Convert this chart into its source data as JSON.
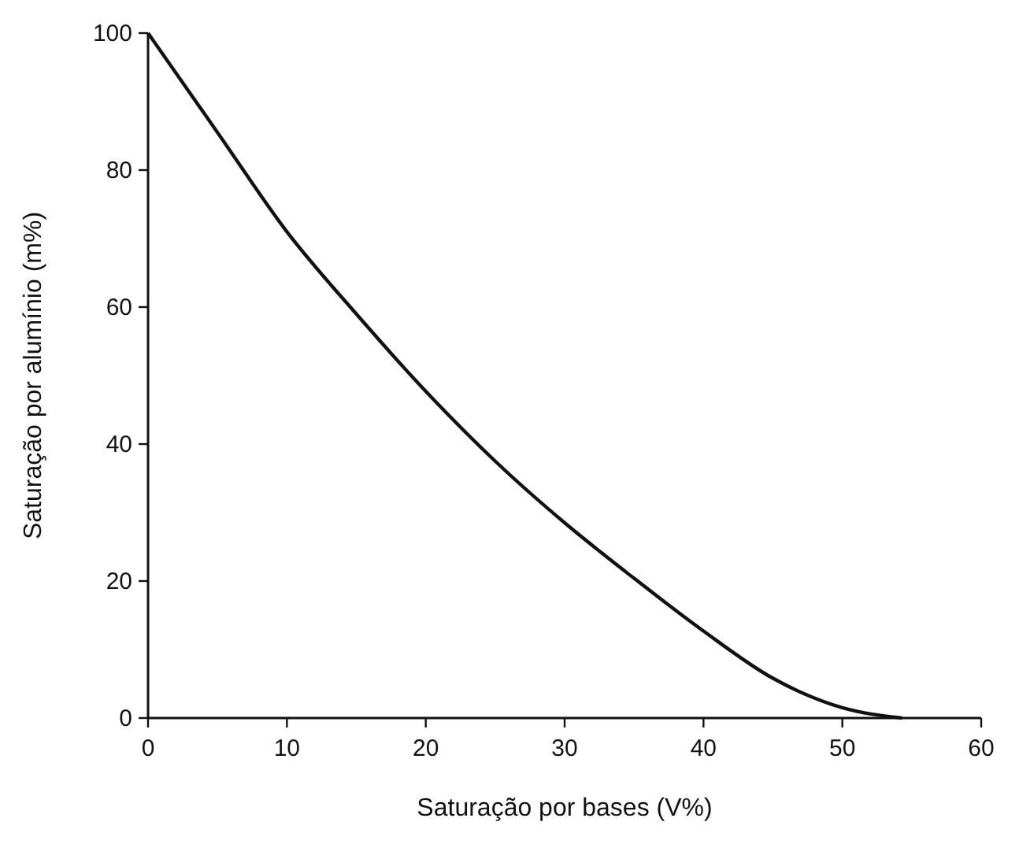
{
  "chart_data": {
    "type": "line",
    "xlabel": "Saturação por bases (V%)",
    "ylabel": "Saturação por alumínio (m%)",
    "series": [
      {
        "color": "#111111",
        "x": [
          0,
          5,
          10,
          15,
          20,
          25,
          30,
          35,
          40,
          45,
          50,
          54.3
        ],
        "values": [
          100,
          85.5,
          71,
          59,
          47.7,
          37.5,
          28.5,
          20.4,
          12.7,
          5.8,
          1.5,
          0
        ]
      }
    ],
    "xlim": [
      0,
      60
    ],
    "xticks": [
      0,
      10,
      20,
      30,
      40,
      50,
      60
    ],
    "ylim": [
      0,
      100
    ],
    "yticks": [
      0,
      20,
      40,
      60,
      80,
      100
    ],
    "grid": false,
    "marker": "none",
    "line_style": "solid"
  }
}
